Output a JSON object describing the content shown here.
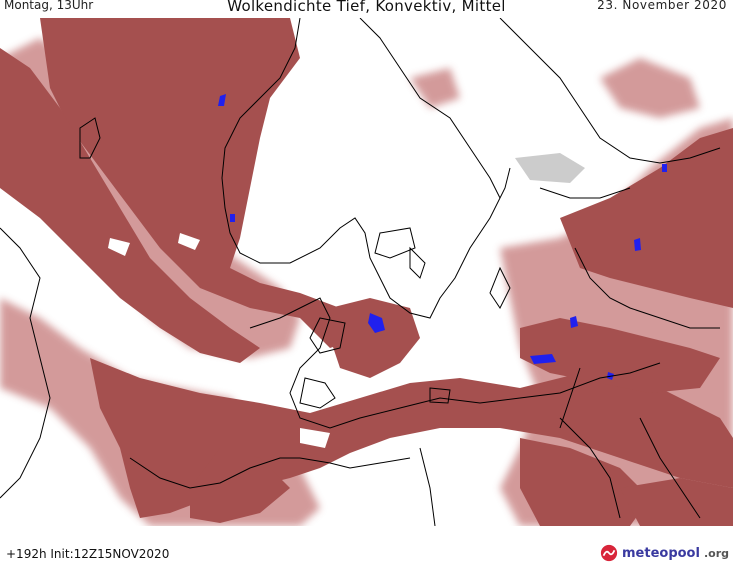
{
  "header": {
    "valid_time": "Montag, 13Uhr",
    "title": "Wolkendichte   Tief, Konvektiv, Mittel",
    "date": "23. November 2020"
  },
  "map": {
    "cloud_color": "#a04f4f",
    "cloud_light_color": "#c98585",
    "precip_color": "#2222ee",
    "coastline_color": "#000000"
  },
  "footer": {
    "run_info": "+192h  Init:12Z15NOV2020",
    "brand_name": "meteopool",
    "brand_tld": ".org",
    "brand_icon": "meteopool-logo-icon"
  }
}
